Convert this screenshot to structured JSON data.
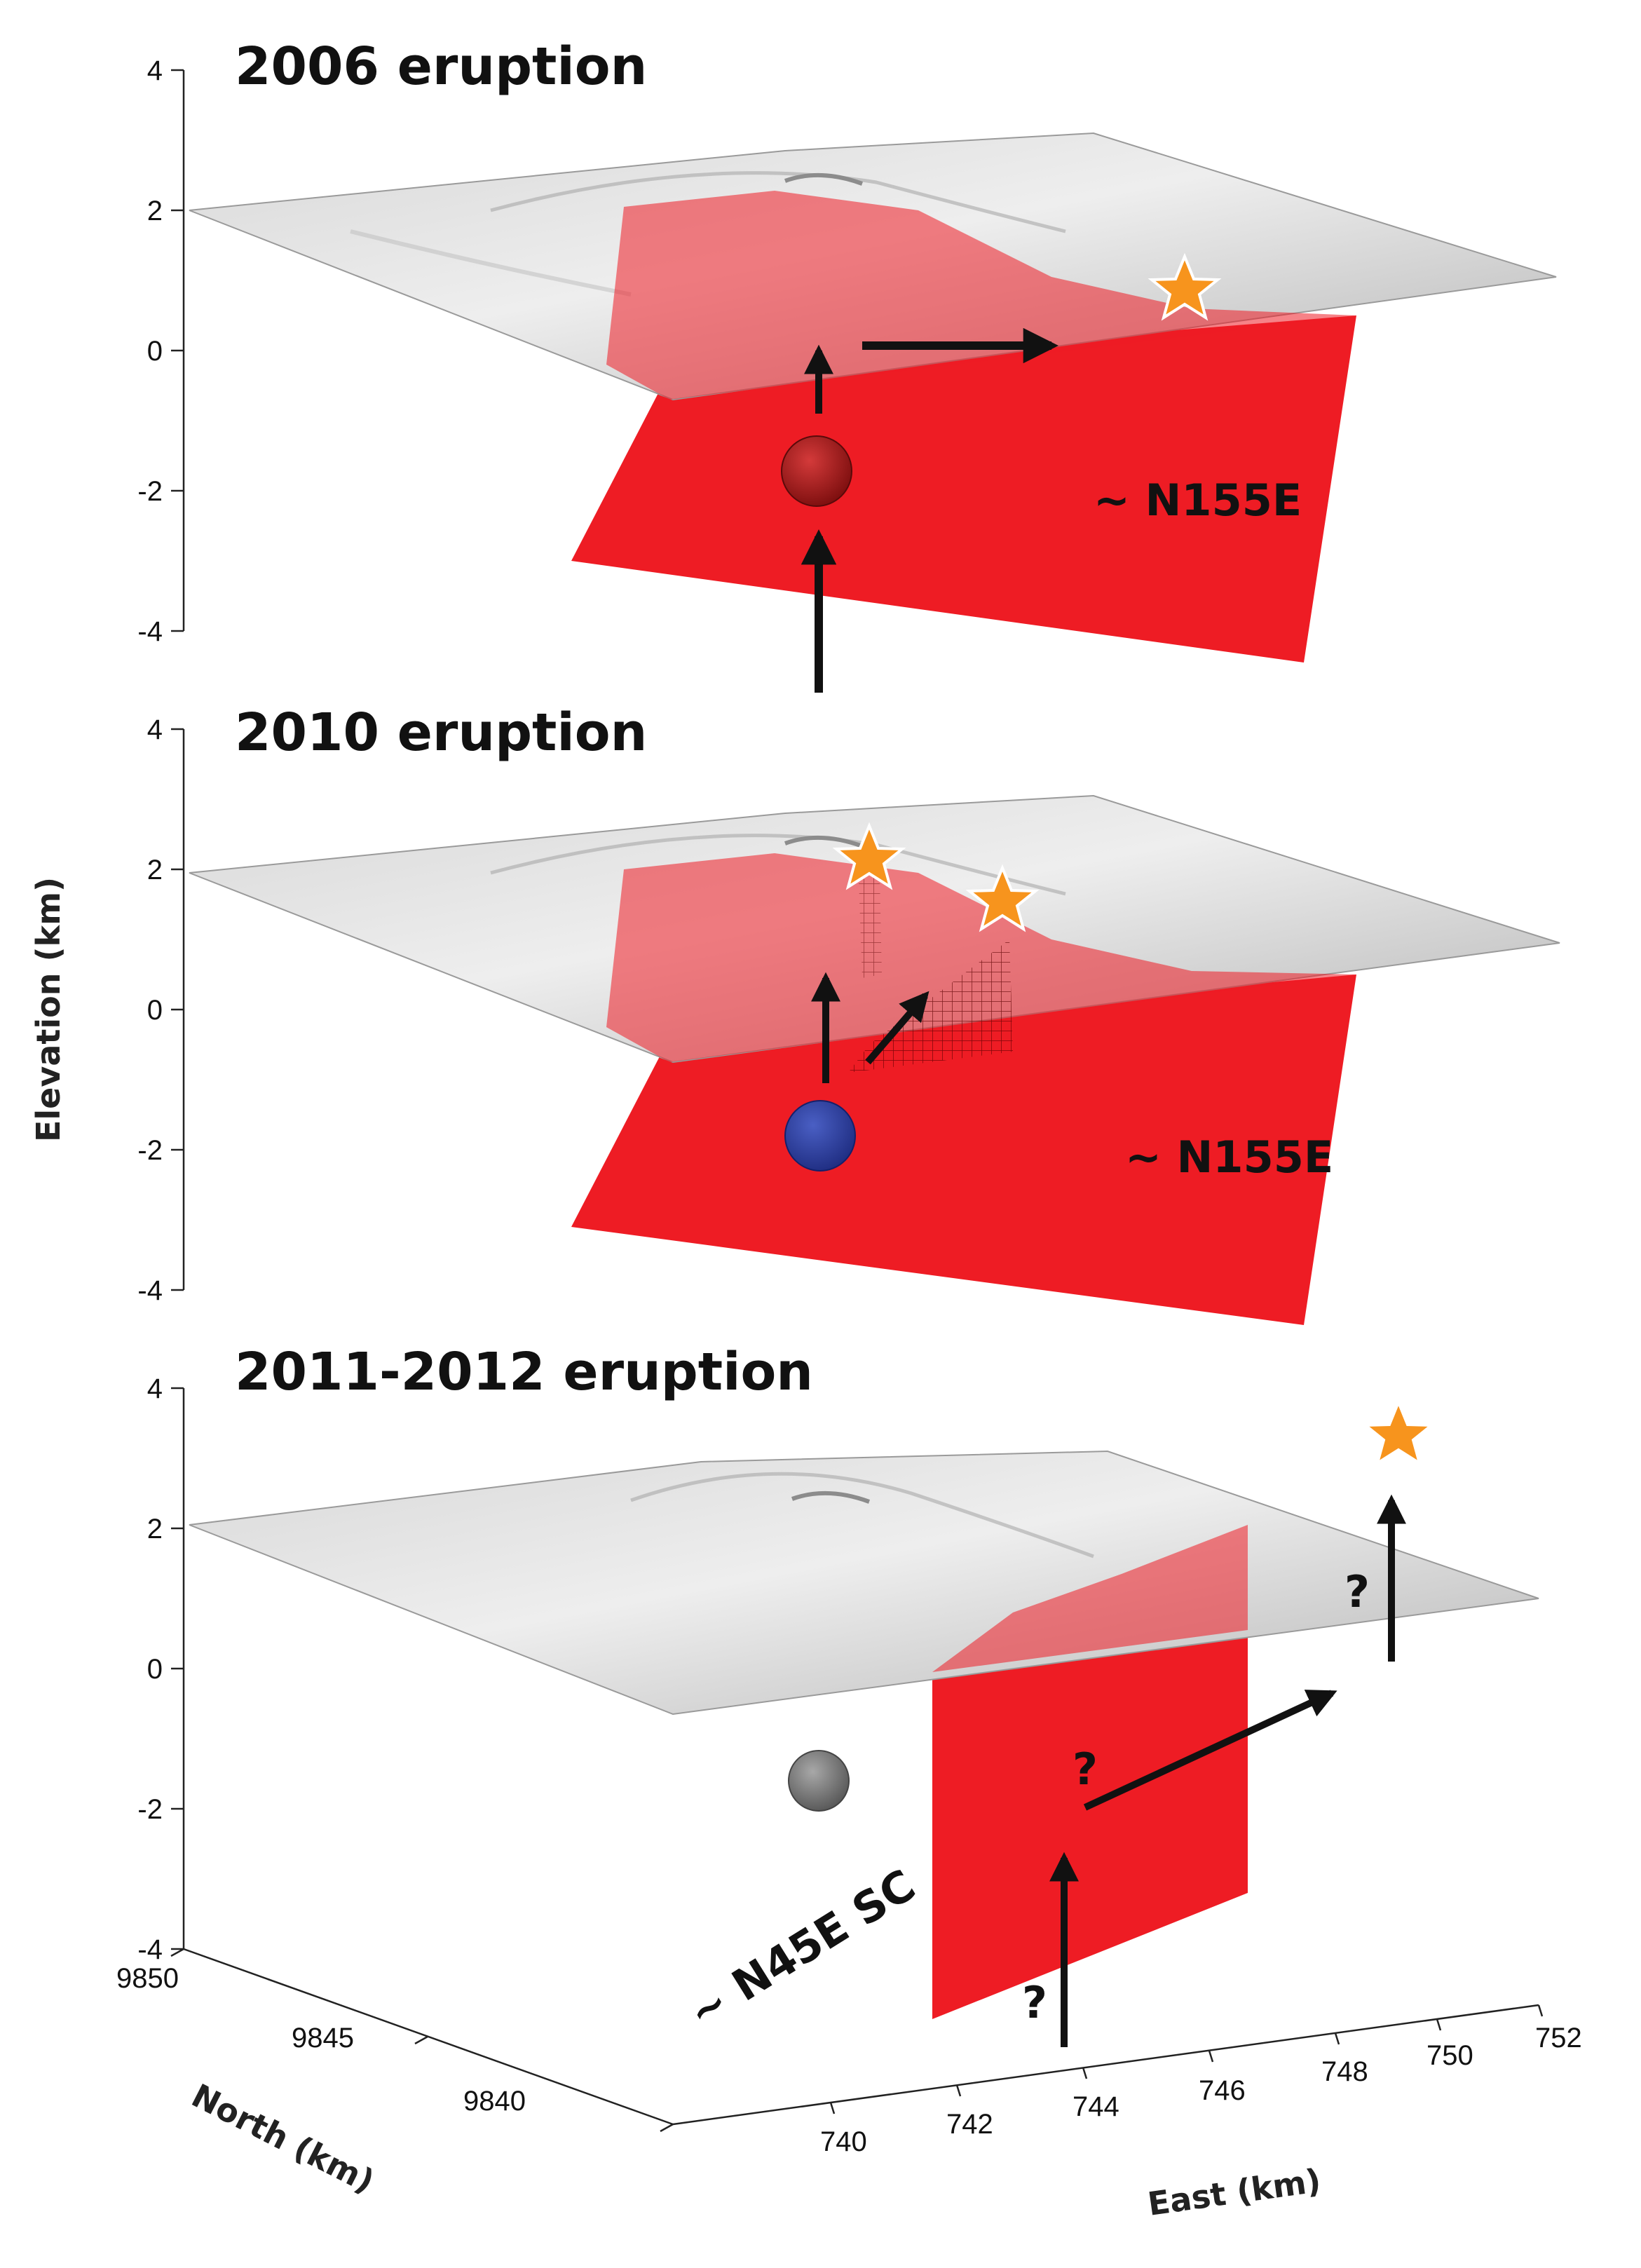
{
  "panels": [
    {
      "title": "2006 eruption",
      "strike_label": "~ N155E",
      "z_ticks": [
        "4",
        "2",
        "0",
        "-2",
        "-4"
      ],
      "source_color": "#b01818"
    },
    {
      "title": "2010 eruption",
      "strike_label": "~ N155E",
      "z_ticks": [
        "4",
        "2",
        "0",
        "-2",
        "-4"
      ],
      "source_color": "#2b3f9e"
    },
    {
      "title": "2011-2012 eruption",
      "strike_label": "~ N45E SC",
      "z_ticks": [
        "4",
        "2",
        "0",
        "-2",
        "-4"
      ],
      "source_color": "#7a7a7a",
      "question_marks": [
        "?",
        "?",
        "?"
      ]
    }
  ],
  "axes": {
    "z_label": "Elevation (km)",
    "north_label": "North (km)",
    "east_label": "East (km)",
    "north_ticks": [
      "9850",
      "9845",
      "9840"
    ],
    "east_ticks": [
      "740",
      "742",
      "744",
      "746",
      "748",
      "750",
      "752"
    ]
  },
  "colors": {
    "dike": "#ee1c24",
    "vent_star": "#f7941d",
    "terrain": "#c8c8c8"
  }
}
